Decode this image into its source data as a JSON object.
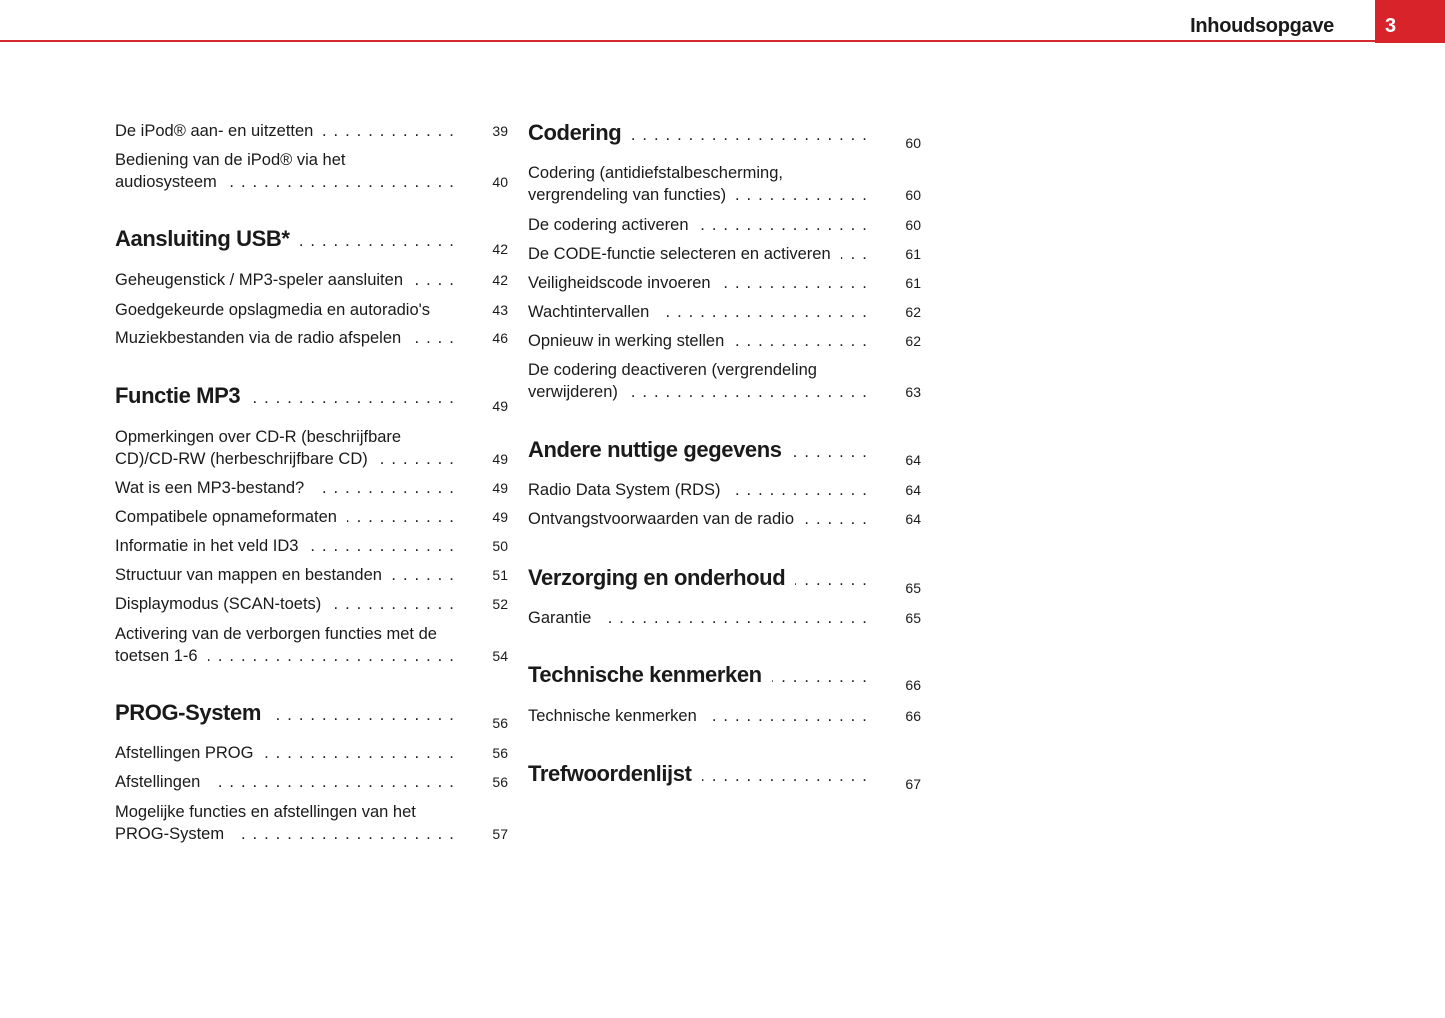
{
  "header": {
    "title": "Inhoudsopgave",
    "page_number": "3",
    "accent_color": "#d8232a"
  },
  "left": [
    {
      "line1": "De iPod® aan- en uitzetten",
      "page": "39"
    },
    {
      "line0": "Bediening van de iPod® via het",
      "line1": "audiosysteem",
      "page": "40"
    },
    {
      "heading": true,
      "line1": "Aansluiting USB*",
      "page": "42"
    },
    {
      "line1": "Geheugenstick / MP3-speler aansluiten",
      "page": "42"
    },
    {
      "line1": "Goedgekeurde opslagmedia en autoradio's",
      "page": "43"
    },
    {
      "line1": "Muziekbestanden via de radio afspelen",
      "page": "46"
    },
    {
      "heading": true,
      "line1": "Functie MP3",
      "page": "49"
    },
    {
      "line0": "Opmerkingen over CD-R (beschrijfbare",
      "line1": "CD)/CD-RW (herbeschrijfbare CD)",
      "page": "49"
    },
    {
      "line1": "Wat is een MP3-bestand?",
      "page": "49"
    },
    {
      "line1": "Compatibele opnameformaten",
      "page": "49"
    },
    {
      "line1": "Informatie in het veld ID3",
      "page": "50"
    },
    {
      "line1": "Structuur van mappen en bestanden",
      "page": "51"
    },
    {
      "line1": "Displaymodus (SCAN-toets)",
      "page": "52"
    },
    {
      "line0": "Activering van de verborgen functies met de",
      "line1": "toetsen 1-6",
      "page": "54"
    },
    {
      "heading": true,
      "line1": "PROG-System",
      "page": "56"
    },
    {
      "line1": "Afstellingen PROG",
      "page": "56"
    },
    {
      "line1": "Afstellingen",
      "page": "56"
    },
    {
      "line0": "Mogelijke functies en afstellingen van het",
      "line1": "PROG-System",
      "page": "57"
    }
  ],
  "right": [
    {
      "heading": true,
      "line1": "Codering",
      "page": "60"
    },
    {
      "line0": "Codering (antidiefstalbescherming,",
      "line1": "vergrendeling van functies)",
      "page": "60"
    },
    {
      "line1": "De codering activeren",
      "page": "60"
    },
    {
      "line1": "De CODE-functie selecteren en activeren",
      "page": "61"
    },
    {
      "line1": "Veiligheidscode invoeren",
      "page": "61"
    },
    {
      "line1": "Wachtintervallen",
      "page": "62"
    },
    {
      "line1": "Opnieuw in werking stellen",
      "page": "62"
    },
    {
      "line0": "De codering deactiveren (vergrendeling",
      "line1": "verwijderen)",
      "page": "63"
    },
    {
      "heading": true,
      "line1": "Andere nuttige gegevens",
      "page": "64"
    },
    {
      "line1": "Radio Data System (RDS)",
      "page": "64"
    },
    {
      "line1": "Ontvangstvoorwaarden van de radio",
      "page": "64"
    },
    {
      "heading": true,
      "line1": "Verzorging en onderhoud",
      "page": "65"
    },
    {
      "line1": "Garantie",
      "page": "65"
    },
    {
      "heading": true,
      "line1": "Technische kenmerken",
      "page": "66"
    },
    {
      "line1": "Technische kenmerken",
      "page": "66"
    },
    {
      "heading": true,
      "line1": "Trefwoordenlijst",
      "page": "67"
    }
  ]
}
